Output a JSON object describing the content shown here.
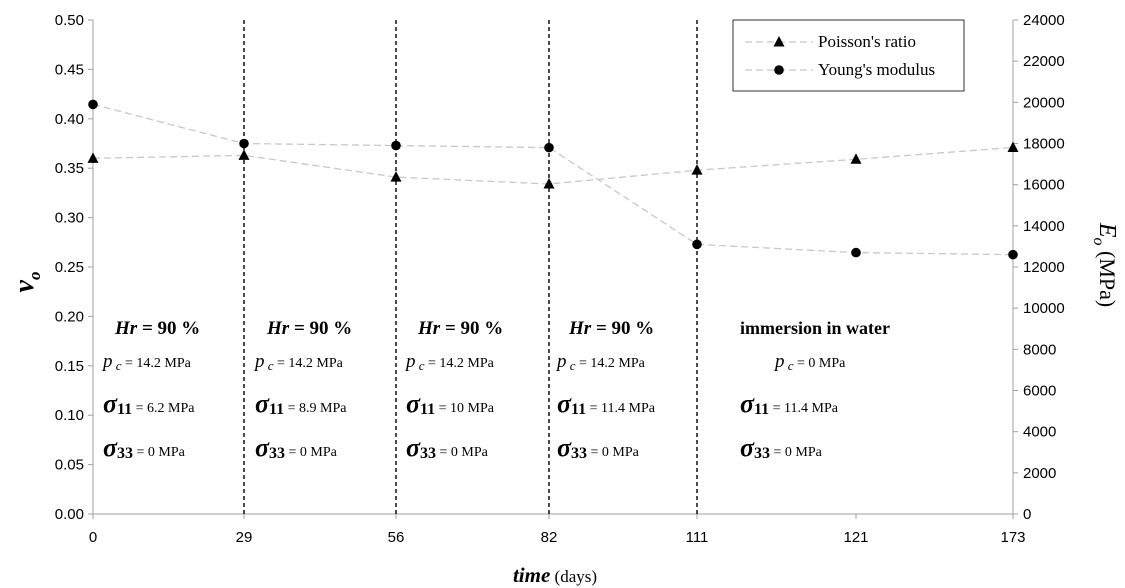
{
  "chart_data": {
    "type": "line",
    "categories": [
      "0",
      "29",
      "56",
      "82",
      "111",
      "121",
      "173"
    ],
    "x_label": {
      "main": "time",
      "unit": " (days)"
    },
    "y_left_label": {
      "main": "ν",
      "sub": "o"
    },
    "y_right_label": {
      "main": "E",
      "sub": "o",
      "unit": " (MPa)"
    },
    "y_left_range": [
      0,
      0.5
    ],
    "y_left_ticks": [
      "0.00",
      "0.05",
      "0.10",
      "0.15",
      "0.20",
      "0.25",
      "0.30",
      "0.35",
      "0.40",
      "0.45",
      "0.50"
    ],
    "y_right_range": [
      0,
      24000
    ],
    "y_right_ticks": [
      "0",
      "2000",
      "4000",
      "6000",
      "8000",
      "10000",
      "12000",
      "14000",
      "16000",
      "18000",
      "20000",
      "22000",
      "24000"
    ],
    "series": [
      {
        "name": "Poisson's ratio",
        "axis": "left",
        "marker": "triangle",
        "values": [
          0.36,
          0.363,
          0.341,
          0.334,
          0.348,
          0.359,
          0.371
        ]
      },
      {
        "name": "Young's modulus",
        "axis": "right",
        "marker": "circle",
        "values": [
          19900,
          18000,
          17900,
          17800,
          13100,
          12700,
          12600
        ]
      }
    ],
    "phase_dividers_at": [
      "29",
      "56",
      "82",
      "111"
    ],
    "legend_position": "top-right",
    "grid": false,
    "annotations": [
      {
        "hr": "Hr",
        "hr_value": "= 90 %",
        "pc_value": "= 14.2 MPa",
        "s11_value": "= 6.2 MPa",
        "s33_value": "= 0 MPa"
      },
      {
        "hr": "Hr",
        "hr_value": "= 90 %",
        "pc_value": "= 14.2 MPa",
        "s11_value": "= 8.9 MPa",
        "s33_value": "= 0 MPa"
      },
      {
        "hr": "Hr",
        "hr_value": "= 90 %",
        "pc_value": "= 14.2 MPa",
        "s11_value": "= 10 MPa",
        "s33_value": "= 0 MPa"
      },
      {
        "hr": "Hr",
        "hr_value": "= 90 %",
        "pc_value": "= 14.2 MPa",
        "s11_value": "= 11.4 MPa",
        "s33_value": "= 0 MPa"
      },
      {
        "heading": "immersion in water",
        "pc_value": "= 0 MPa",
        "s11_value": "= 11.4 MPa",
        "s33_value": "= 0 MPa"
      }
    ],
    "symbols": {
      "pc": "p",
      "pc_sub": "c",
      "sigma": "σ",
      "s11_sub": "11",
      "s33_sub": "33"
    },
    "colors": {
      "series_line": "#c8c8c8",
      "marker": "#000000",
      "axis": "#a0a0a0",
      "divider": "#000000"
    }
  }
}
